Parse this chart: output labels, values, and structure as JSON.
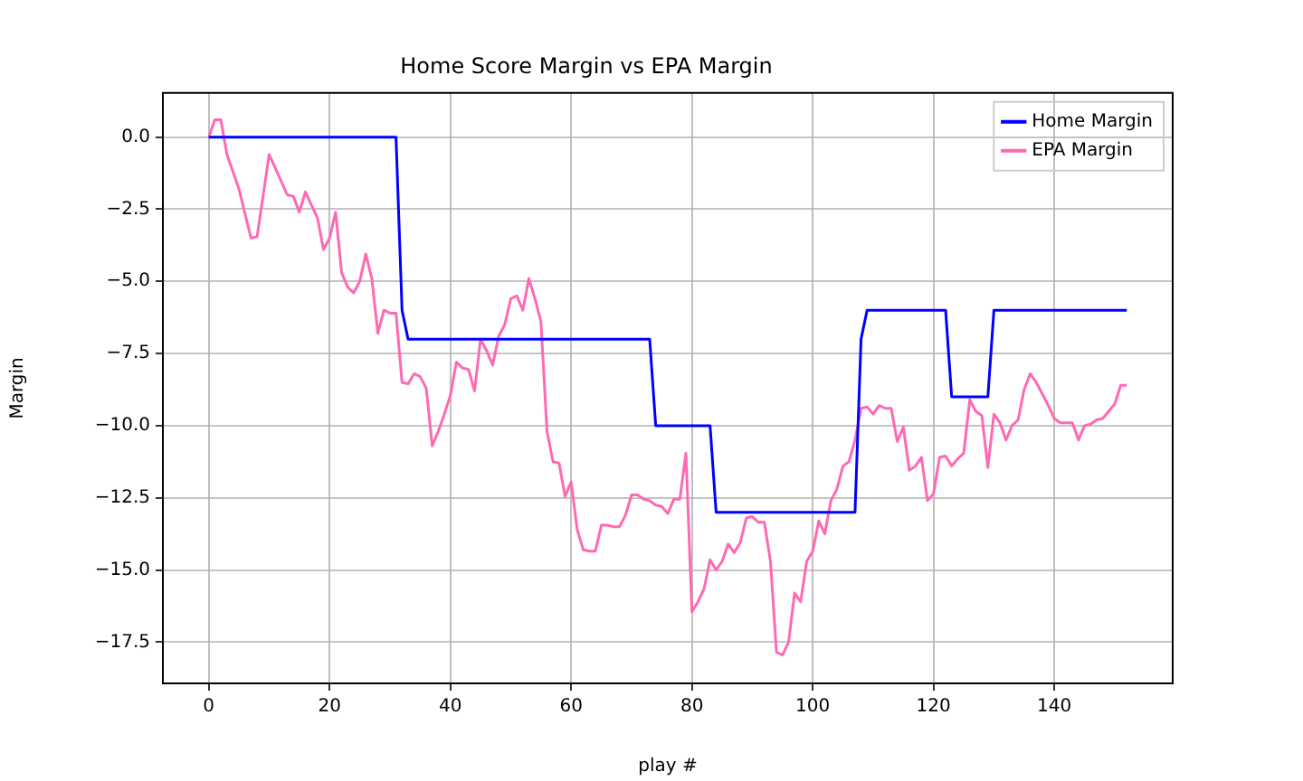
{
  "chart_data": {
    "type": "line",
    "title": "Home Score Margin vs EPA Margin",
    "xlabel": "play #",
    "ylabel": "Margin",
    "xlim": [
      -7.6,
      159.6
    ],
    "ylim": [
      -18.93,
      1.53
    ],
    "xticks": [
      0,
      20,
      40,
      60,
      80,
      100,
      120,
      140
    ],
    "yticks": [
      {
        "value": 0,
        "label": "0.0"
      },
      {
        "value": -2.5,
        "label": "−2.5"
      },
      {
        "value": -5,
        "label": "−5.0"
      },
      {
        "value": -7.5,
        "label": "−7.5"
      },
      {
        "value": -10,
        "label": "−10.0"
      },
      {
        "value": -12.5,
        "label": "−12.5"
      },
      {
        "value": -15,
        "label": "−15.0"
      },
      {
        "value": -17.5,
        "label": "−17.5"
      }
    ],
    "grid": true,
    "legend": "top right",
    "marker": "none",
    "line_style": "solid",
    "series": [
      {
        "name": "Home Margin",
        "color": "#0000ff",
        "x": [
          0,
          31,
          32,
          33,
          73,
          74,
          83,
          84,
          107,
          108,
          109,
          122,
          123,
          129,
          130,
          152
        ],
        "values": [
          0,
          0,
          -6,
          -7,
          -7,
          -10,
          -10,
          -13,
          -13,
          -7,
          -6,
          -6,
          -9,
          -9,
          -6,
          -6
        ]
      },
      {
        "name": "EPA Margin",
        "color": "#ff69b4",
        "x": [
          0,
          1,
          2,
          3,
          5,
          7,
          8,
          10,
          13,
          14,
          15,
          16,
          18,
          19,
          20,
          21,
          22,
          23,
          24,
          25,
          26,
          27,
          28,
          29,
          30,
          31,
          32,
          33,
          34,
          35,
          36,
          37,
          38,
          39,
          40,
          41,
          42,
          43,
          44,
          45,
          46,
          47,
          48,
          49,
          50,
          51,
          52,
          53,
          54,
          55,
          56,
          57,
          58,
          59,
          60,
          61,
          62,
          63,
          64,
          65,
          66,
          67,
          68,
          69,
          70,
          71,
          72,
          73,
          74,
          75,
          76,
          77,
          78,
          79,
          80,
          81,
          82,
          83,
          84,
          85,
          86,
          87,
          88,
          89,
          90,
          91,
          92,
          93,
          94,
          95,
          96,
          97,
          98,
          99,
          100,
          101,
          102,
          103,
          104,
          105,
          106,
          107,
          108,
          109,
          110,
          111,
          112,
          113,
          114,
          115,
          116,
          117,
          118,
          119,
          120,
          121,
          122,
          123,
          124,
          125,
          126,
          127,
          128,
          129,
          130,
          131,
          132,
          133,
          134,
          135,
          136,
          137,
          138,
          139,
          140,
          141,
          142,
          143,
          144,
          145,
          146,
          147,
          148,
          149,
          150,
          151,
          152
        ],
        "values": [
          0,
          0.6,
          0.6,
          -0.6,
          -1.8,
          -3.5,
          -3.45,
          -0.6,
          -2.0,
          -2.05,
          -2.6,
          -1.9,
          -2.8,
          -3.9,
          -3.5,
          -2.6,
          -4.7,
          -5.2,
          -5.4,
          -5.0,
          -4.05,
          -4.9,
          -6.8,
          -6.0,
          -6.1,
          -6.1,
          -8.5,
          -8.55,
          -8.2,
          -8.3,
          -8.7,
          -10.7,
          -10.2,
          -9.6,
          -8.95,
          -7.8,
          -8.0,
          -8.05,
          -8.8,
          -7.0,
          -7.4,
          -7.9,
          -6.9,
          -6.5,
          -5.6,
          -5.5,
          -6.0,
          -4.9,
          -5.6,
          -6.4,
          -10.2,
          -11.25,
          -11.3,
          -12.45,
          -11.95,
          -13.6,
          -14.3,
          -14.35,
          -14.35,
          -13.45,
          -13.45,
          -13.5,
          -13.5,
          -13.1,
          -12.4,
          -12.4,
          -12.55,
          -12.6,
          -12.75,
          -12.8,
          -13.05,
          -12.55,
          -12.55,
          -10.95,
          -16.45,
          -16.1,
          -15.65,
          -14.65,
          -15.0,
          -14.7,
          -14.1,
          -14.4,
          -14.05,
          -13.2,
          -13.15,
          -13.35,
          -13.35,
          -14.7,
          -17.85,
          -17.95,
          -17.5,
          -15.8,
          -16.1,
          -14.7,
          -14.35,
          -13.3,
          -13.75,
          -12.6,
          -12.2,
          -11.4,
          -11.25,
          -10.5,
          -9.4,
          -9.35,
          -9.6,
          -9.3,
          -9.4,
          -9.4,
          -10.55,
          -10.05,
          -11.55,
          -11.4,
          -11.1,
          -12.6,
          -12.35,
          -11.1,
          -11.05,
          -11.4,
          -11.15,
          -10.95,
          -9.1,
          -9.5,
          -9.65,
          -11.45,
          -9.6,
          -9.9,
          -10.5,
          -10.0,
          -9.8,
          -8.75,
          -8.2,
          -8.5,
          -8.9,
          -9.3,
          -9.75,
          -9.9,
          -9.9,
          -9.9,
          -10.5,
          -10.0,
          -9.95,
          -9.8,
          -9.75,
          -9.5,
          -9.25,
          -8.6,
          -8.6
        ]
      }
    ]
  }
}
